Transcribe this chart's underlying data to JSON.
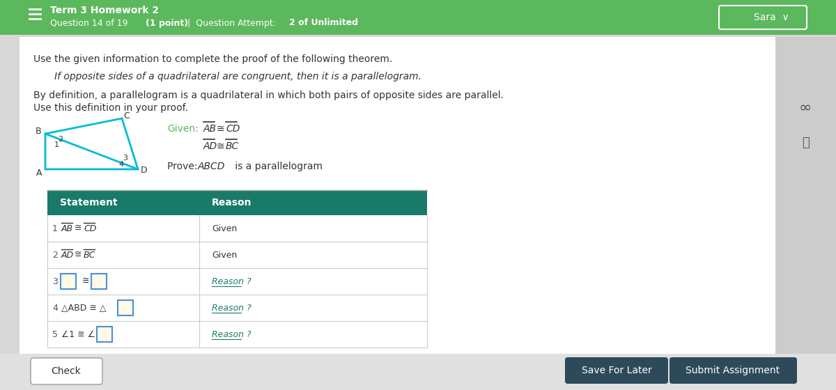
{
  "header_color": "#5cb85c",
  "header_text_color": "#ffffff",
  "header_title": "Term 3 Homework 2",
  "bg_color": "#d8d8d8",
  "content_bg": "#ffffff",
  "title_text": "Use the given information to complete the proof of the following theorem.",
  "italic_text": "If opposite sides of a quadrilateral are congruent, then it is a parallelogram.",
  "given_color": "#5cb85c",
  "table_header_color": "#1a7a6a",
  "table_header_text": "#ffffff",
  "reason_link_color": "#1a7a6a",
  "input_border_color": "#4a90d9",
  "input_fill_color": "#fff9e6",
  "save_button_color": "#2d4a5a",
  "submit_button_color": "#2d4a5a",
  "footer_color": "#e0e0e0"
}
